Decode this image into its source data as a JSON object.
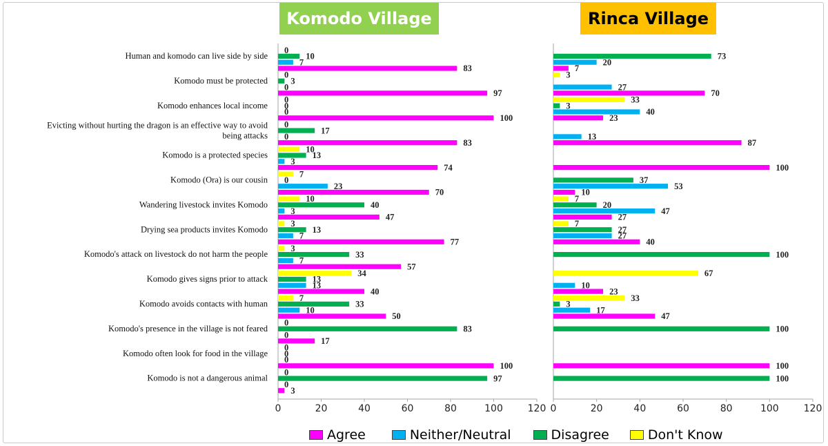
{
  "panels": {
    "left_title": "Komodo Village",
    "right_title": "Rinca Village"
  },
  "legend": [
    {
      "name": "Agree",
      "color": "#ff00ff"
    },
    {
      "name": "Neither/Neutral",
      "color": "#00b0f0"
    },
    {
      "name": "Disagree",
      "color": "#00b050"
    },
    {
      "name": "Don't Know",
      "color": "#ffff00"
    }
  ],
  "chart_data": [
    {
      "type": "bar",
      "orientation": "horizontal",
      "title": "Komodo Village",
      "xlim": [
        0,
        120
      ],
      "ticks": [
        "0",
        "20",
        "40",
        "60",
        "80",
        "100",
        "120"
      ],
      "categories": [
        "Human and komodo can live side by side",
        "Komodo must be protected",
        "Komodo enhances local income",
        "Evicting without hurting the dragon is an effective way to avoid being attacks",
        "Komodo is a protected species",
        "Komodo (Ora) is our cousin",
        "Wandering livestock invites Komodo",
        "Drying sea products invites Komodo",
        "Komodo's attack on livestock do not harm the people",
        "Komodo gives signs prior to attack",
        "Komodo avoids contacts with human",
        "Komodo's presence in the village is not feared",
        "Komodo often look for food in the village",
        "Komodo is not a dangerous animal"
      ],
      "series": [
        {
          "name": "Don't Know",
          "values": [
            0,
            0,
            0,
            0,
            10,
            7,
            10,
            3,
            3,
            34,
            7,
            0,
            0,
            0
          ]
        },
        {
          "name": "Disagree",
          "values": [
            10,
            3,
            0,
            17,
            13,
            0,
            40,
            13,
            33,
            13,
            33,
            83,
            0,
            97
          ]
        },
        {
          "name": "Neither/Neutral",
          "values": [
            7,
            0,
            0,
            0,
            3,
            23,
            3,
            7,
            7,
            13,
            10,
            0,
            0,
            0
          ]
        },
        {
          "name": "Agree",
          "values": [
            83,
            97,
            100,
            83,
            74,
            70,
            47,
            77,
            57,
            40,
            50,
            17,
            100,
            3
          ]
        }
      ]
    },
    {
      "type": "bar",
      "orientation": "horizontal",
      "title": "Rinca Village",
      "xlim": [
        0,
        120
      ],
      "ticks": [
        "0",
        "20",
        "40",
        "60",
        "80",
        "100",
        "120"
      ],
      "categories": [
        "Human and komodo can live side by side",
        "Komodo must be protected",
        "Komodo enhances local income",
        "Evicting without hurting the dragon is an effective way to avoid being attacks",
        "Komodo is a protected species",
        "Komodo (Ora) is our cousin",
        "Wandering livestock invites Komodo",
        "Drying sea products invites Komodo",
        "Komodo's attack on livestock do not harm the people",
        "Komodo gives signs prior to attack",
        "Komodo avoids contacts with human",
        "Komodo's presence in the village is not feared",
        "Komodo often look for food in the village",
        "Komodo is not a dangerous animal"
      ],
      "series": [
        {
          "name": "Don't Know",
          "values": [
            null,
            3,
            33,
            null,
            null,
            null,
            7,
            7,
            null,
            67,
            33,
            null,
            null,
            null
          ]
        },
        {
          "name": "Disagree",
          "values": [
            73,
            null,
            3,
            null,
            null,
            37,
            20,
            27,
            100,
            null,
            3,
            100,
            null,
            100
          ]
        },
        {
          "name": "Neither/Neutral",
          "values": [
            20,
            27,
            40,
            13,
            null,
            53,
            47,
            27,
            null,
            10,
            17,
            null,
            null,
            null
          ]
        },
        {
          "name": "Agree",
          "values": [
            7,
            70,
            23,
            87,
            100,
            10,
            27,
            40,
            null,
            23,
            47,
            null,
            100,
            null
          ]
        }
      ]
    }
  ]
}
